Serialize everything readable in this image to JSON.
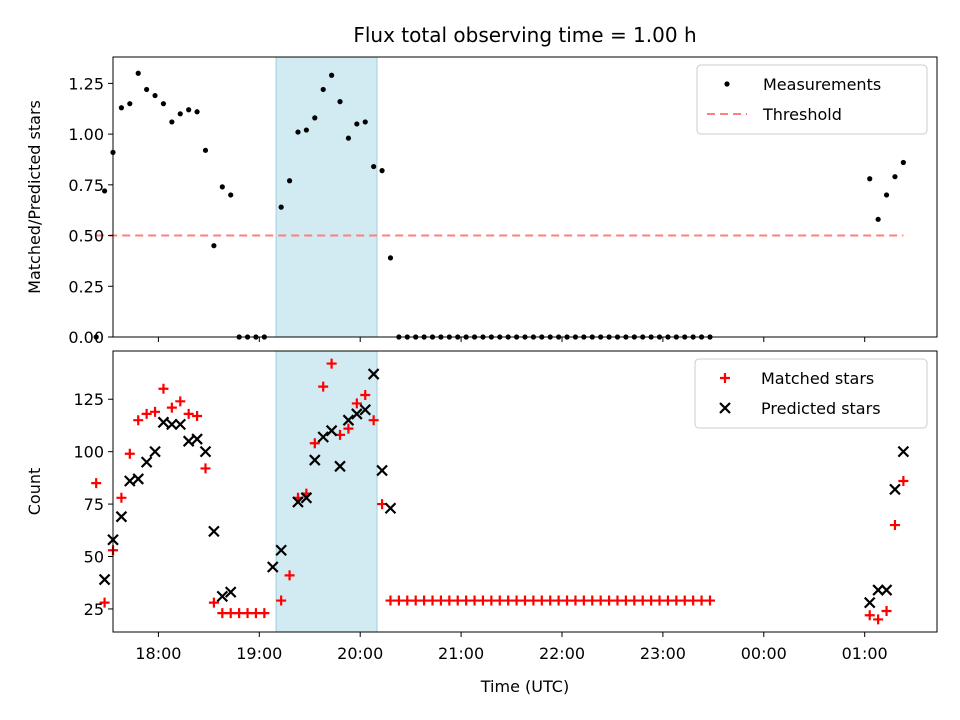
{
  "title": "Flux total observing time = 1.00 h",
  "chart_data": [
    {
      "type": "scatter",
      "panel": "top",
      "title": "Flux total observing time = 1.00 h",
      "xlabel": "",
      "ylabel": "Matched/Predicted stars",
      "xlim": [
        "17:33",
        "01:43"
      ],
      "ylim": [
        0,
        1.38
      ],
      "yticks": [
        0.0,
        0.25,
        0.5,
        0.75,
        1.0,
        1.25
      ],
      "ytick_labels": [
        "0.00",
        "0.25",
        "0.50",
        "0.75",
        "1.00",
        "1.25"
      ],
      "shaded_span": [
        "19:10",
        "20:10"
      ],
      "legend_position": "upper-right",
      "series": [
        {
          "name": "Measurements",
          "marker": "dot",
          "color": "#000000",
          "points": [
            [
              "17:23",
              0.0
            ],
            [
              "17:28",
              0.72
            ],
            [
              "17:33",
              0.91
            ],
            [
              "17:38",
              1.13
            ],
            [
              "17:43",
              1.15
            ],
            [
              "17:48",
              1.3
            ],
            [
              "17:53",
              1.22
            ],
            [
              "17:58",
              1.19
            ],
            [
              "18:03",
              1.15
            ],
            [
              "18:08",
              1.06
            ],
            [
              "18:13",
              1.1
            ],
            [
              "18:18",
              1.12
            ],
            [
              "18:23",
              1.11
            ],
            [
              "18:28",
              0.92
            ],
            [
              "18:33",
              0.45
            ],
            [
              "18:38",
              0.74
            ],
            [
              "18:43",
              0.7
            ],
            [
              "18:48",
              0.0
            ],
            [
              "18:53",
              0.0
            ],
            [
              "18:58",
              0.0
            ],
            [
              "19:03",
              0.0
            ],
            [
              "19:13",
              0.64
            ],
            [
              "19:18",
              0.77
            ],
            [
              "19:23",
              1.01
            ],
            [
              "19:28",
              1.02
            ],
            [
              "19:33",
              1.08
            ],
            [
              "19:38",
              1.22
            ],
            [
              "19:43",
              1.29
            ],
            [
              "19:48",
              1.16
            ],
            [
              "19:53",
              0.98
            ],
            [
              "19:58",
              1.05
            ],
            [
              "20:03",
              1.06
            ],
            [
              "20:08",
              0.84
            ],
            [
              "20:13",
              0.82
            ],
            [
              "20:18",
              0.39
            ],
            [
              "20:23",
              0.0
            ],
            [
              "20:28",
              0.0
            ],
            [
              "20:33",
              0.0
            ],
            [
              "20:38",
              0.0
            ],
            [
              "20:43",
              0.0
            ],
            [
              "20:48",
              0.0
            ],
            [
              "20:53",
              0.0
            ],
            [
              "20:58",
              0.0
            ],
            [
              "21:03",
              0.0
            ],
            [
              "21:08",
              0.0
            ],
            [
              "21:13",
              0.0
            ],
            [
              "21:18",
              0.0
            ],
            [
              "21:23",
              0.0
            ],
            [
              "21:28",
              0.0
            ],
            [
              "21:33",
              0.0
            ],
            [
              "21:38",
              0.0
            ],
            [
              "21:43",
              0.0
            ],
            [
              "21:48",
              0.0
            ],
            [
              "21:53",
              0.0
            ],
            [
              "21:58",
              0.0
            ],
            [
              "22:03",
              0.0
            ],
            [
              "22:08",
              0.0
            ],
            [
              "22:13",
              0.0
            ],
            [
              "22:18",
              0.0
            ],
            [
              "22:23",
              0.0
            ],
            [
              "22:28",
              0.0
            ],
            [
              "22:33",
              0.0
            ],
            [
              "22:38",
              0.0
            ],
            [
              "22:43",
              0.0
            ],
            [
              "22:48",
              0.0
            ],
            [
              "22:53",
              0.0
            ],
            [
              "22:58",
              0.0
            ],
            [
              "23:03",
              0.0
            ],
            [
              "23:08",
              0.0
            ],
            [
              "23:13",
              0.0
            ],
            [
              "23:18",
              0.0
            ],
            [
              "23:23",
              0.0
            ],
            [
              "23:28",
              0.0
            ],
            [
              "01:03",
              0.78
            ],
            [
              "01:08",
              0.58
            ],
            [
              "01:13",
              0.7
            ],
            [
              "01:18",
              0.79
            ],
            [
              "01:23",
              0.86
            ]
          ]
        },
        {
          "name": "Threshold",
          "marker": "dashed-line",
          "color": "#ff7f7f",
          "points": [
            [
              "17:23",
              0.5
            ],
            [
              "01:23",
              0.5
            ]
          ]
        }
      ]
    },
    {
      "type": "scatter",
      "panel": "bottom",
      "xlabel": "Time (UTC)",
      "ylabel": "Count",
      "xlim": [
        "17:33",
        "01:43"
      ],
      "ylim": [
        14,
        148
      ],
      "yticks": [
        25,
        50,
        75,
        100,
        125
      ],
      "ytick_labels": [
        "25",
        "50",
        "75",
        "100",
        "125"
      ],
      "xticks": [
        "18:00",
        "19:00",
        "20:00",
        "21:00",
        "22:00",
        "23:00",
        "00:00",
        "01:00"
      ],
      "xtick_labels": [
        "18:00",
        "19:00",
        "20:00",
        "21:00",
        "22:00",
        "23:00",
        "00:00",
        "01:00"
      ],
      "shaded_span": [
        "19:10",
        "20:10"
      ],
      "legend_position": "upper-right",
      "series": [
        {
          "name": "Matched stars",
          "marker": "plus",
          "color": "#ff0000",
          "points": [
            [
              "17:23",
              85
            ],
            [
              "17:28",
              28
            ],
            [
              "17:33",
              53
            ],
            [
              "17:38",
              78
            ],
            [
              "17:43",
              99
            ],
            [
              "17:48",
              115
            ],
            [
              "17:53",
              118
            ],
            [
              "17:58",
              119
            ],
            [
              "18:03",
              130
            ],
            [
              "18:08",
              121
            ],
            [
              "18:13",
              124
            ],
            [
              "18:18",
              118
            ],
            [
              "18:23",
              117
            ],
            [
              "18:28",
              92
            ],
            [
              "18:33",
              28
            ],
            [
              "18:38",
              23
            ],
            [
              "18:43",
              23
            ],
            [
              "18:48",
              23
            ],
            [
              "18:53",
              23
            ],
            [
              "18:58",
              23
            ],
            [
              "19:03",
              23
            ],
            [
              "19:13",
              29
            ],
            [
              "19:18",
              41
            ],
            [
              "19:23",
              78
            ],
            [
              "19:28",
              80
            ],
            [
              "19:33",
              104
            ],
            [
              "19:38",
              131
            ],
            [
              "19:43",
              142
            ],
            [
              "19:48",
              108
            ],
            [
              "19:53",
              111
            ],
            [
              "19:58",
              123
            ],
            [
              "20:03",
              127
            ],
            [
              "20:08",
              115
            ],
            [
              "20:13",
              75
            ],
            [
              "20:18",
              29
            ],
            [
              "20:23",
              29
            ],
            [
              "20:28",
              29
            ],
            [
              "20:33",
              29
            ],
            [
              "20:38",
              29
            ],
            [
              "20:43",
              29
            ],
            [
              "20:48",
              29
            ],
            [
              "20:53",
              29
            ],
            [
              "20:58",
              29
            ],
            [
              "21:03",
              29
            ],
            [
              "21:08",
              29
            ],
            [
              "21:13",
              29
            ],
            [
              "21:18",
              29
            ],
            [
              "21:23",
              29
            ],
            [
              "21:28",
              29
            ],
            [
              "21:33",
              29
            ],
            [
              "21:38",
              29
            ],
            [
              "21:43",
              29
            ],
            [
              "21:48",
              29
            ],
            [
              "21:53",
              29
            ],
            [
              "21:58",
              29
            ],
            [
              "22:03",
              29
            ],
            [
              "22:08",
              29
            ],
            [
              "22:13",
              29
            ],
            [
              "22:18",
              29
            ],
            [
              "22:23",
              29
            ],
            [
              "22:28",
              29
            ],
            [
              "22:33",
              29
            ],
            [
              "22:38",
              29
            ],
            [
              "22:43",
              29
            ],
            [
              "22:48",
              29
            ],
            [
              "22:53",
              29
            ],
            [
              "22:58",
              29
            ],
            [
              "23:03",
              29
            ],
            [
              "23:08",
              29
            ],
            [
              "23:13",
              29
            ],
            [
              "23:18",
              29
            ],
            [
              "23:23",
              29
            ],
            [
              "23:28",
              29
            ],
            [
              "01:03",
              22
            ],
            [
              "01:08",
              20
            ],
            [
              "01:13",
              24
            ],
            [
              "01:18",
              65
            ],
            [
              "01:23",
              86
            ]
          ]
        },
        {
          "name": "Predicted stars",
          "marker": "x",
          "color": "#000000",
          "points": [
            [
              "17:28",
              39
            ],
            [
              "17:33",
              58
            ],
            [
              "17:38",
              69
            ],
            [
              "17:43",
              86
            ],
            [
              "17:48",
              87
            ],
            [
              "17:53",
              95
            ],
            [
              "17:58",
              100
            ],
            [
              "18:03",
              114
            ],
            [
              "18:08",
              113
            ],
            [
              "18:13",
              113
            ],
            [
              "18:18",
              105
            ],
            [
              "18:23",
              106
            ],
            [
              "18:28",
              100
            ],
            [
              "18:33",
              62
            ],
            [
              "18:38",
              31
            ],
            [
              "18:43",
              33
            ],
            [
              "19:08",
              45
            ],
            [
              "19:13",
              53
            ],
            [
              "19:23",
              76
            ],
            [
              "19:28",
              78
            ],
            [
              "19:33",
              96
            ],
            [
              "19:38",
              107
            ],
            [
              "19:43",
              110
            ],
            [
              "19:48",
              93
            ],
            [
              "19:53",
              115
            ],
            [
              "19:58",
              118
            ],
            [
              "20:03",
              120
            ],
            [
              "20:08",
              137
            ],
            [
              "20:13",
              91
            ],
            [
              "20:18",
              73
            ],
            [
              "01:03",
              28
            ],
            [
              "01:08",
              34
            ],
            [
              "01:13",
              34
            ],
            [
              "01:18",
              82
            ],
            [
              "01:23",
              100
            ]
          ]
        }
      ]
    }
  ]
}
